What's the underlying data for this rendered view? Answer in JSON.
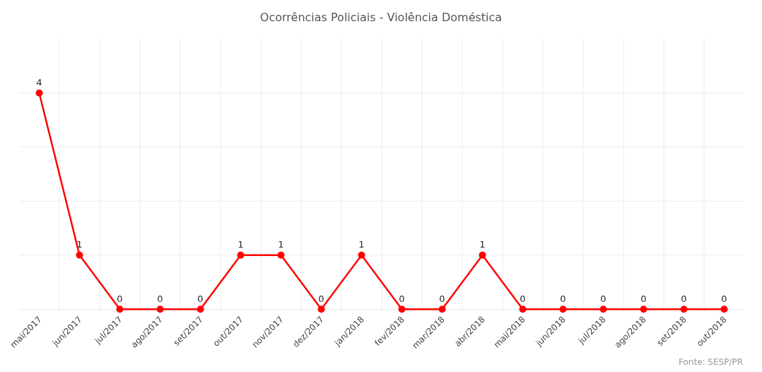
{
  "chart_data": {
    "type": "line",
    "title": "Ocorrências Policiais - Violência Doméstica",
    "categories": [
      "mai/2017",
      "jun/2017",
      "jul/2017",
      "ago/2017",
      "set/2017",
      "out/2017",
      "nov/2017",
      "dez/2017",
      "jan/2018",
      "fev/2018",
      "mar/2018",
      "abr/2018",
      "mai/2018",
      "jun/2018",
      "jul/2018",
      "ago/2018",
      "set/2018",
      "out/2018"
    ],
    "series": [
      {
        "color": "#ff0000",
        "values": [
          4,
          1,
          0,
          0,
          0,
          1,
          1,
          0,
          1,
          0,
          0,
          1,
          0,
          0,
          0,
          0,
          0,
          0
        ]
      }
    ],
    "ylim": [
      -0.05,
      5
    ],
    "yticks": [
      {
        "value": 0,
        "label": null
      },
      {
        "value": 1,
        "label": null
      },
      {
        "value": 2,
        "label": null
      },
      {
        "value": 3,
        "label": null
      },
      {
        "value": 4,
        "label": null
      }
    ],
    "tick_labels": "x",
    "grid": true,
    "marker": "circle",
    "line_style": "solid",
    "data_labels": true,
    "legend": false,
    "annotations": [
      "Fonte: SESP/PR"
    ]
  }
}
